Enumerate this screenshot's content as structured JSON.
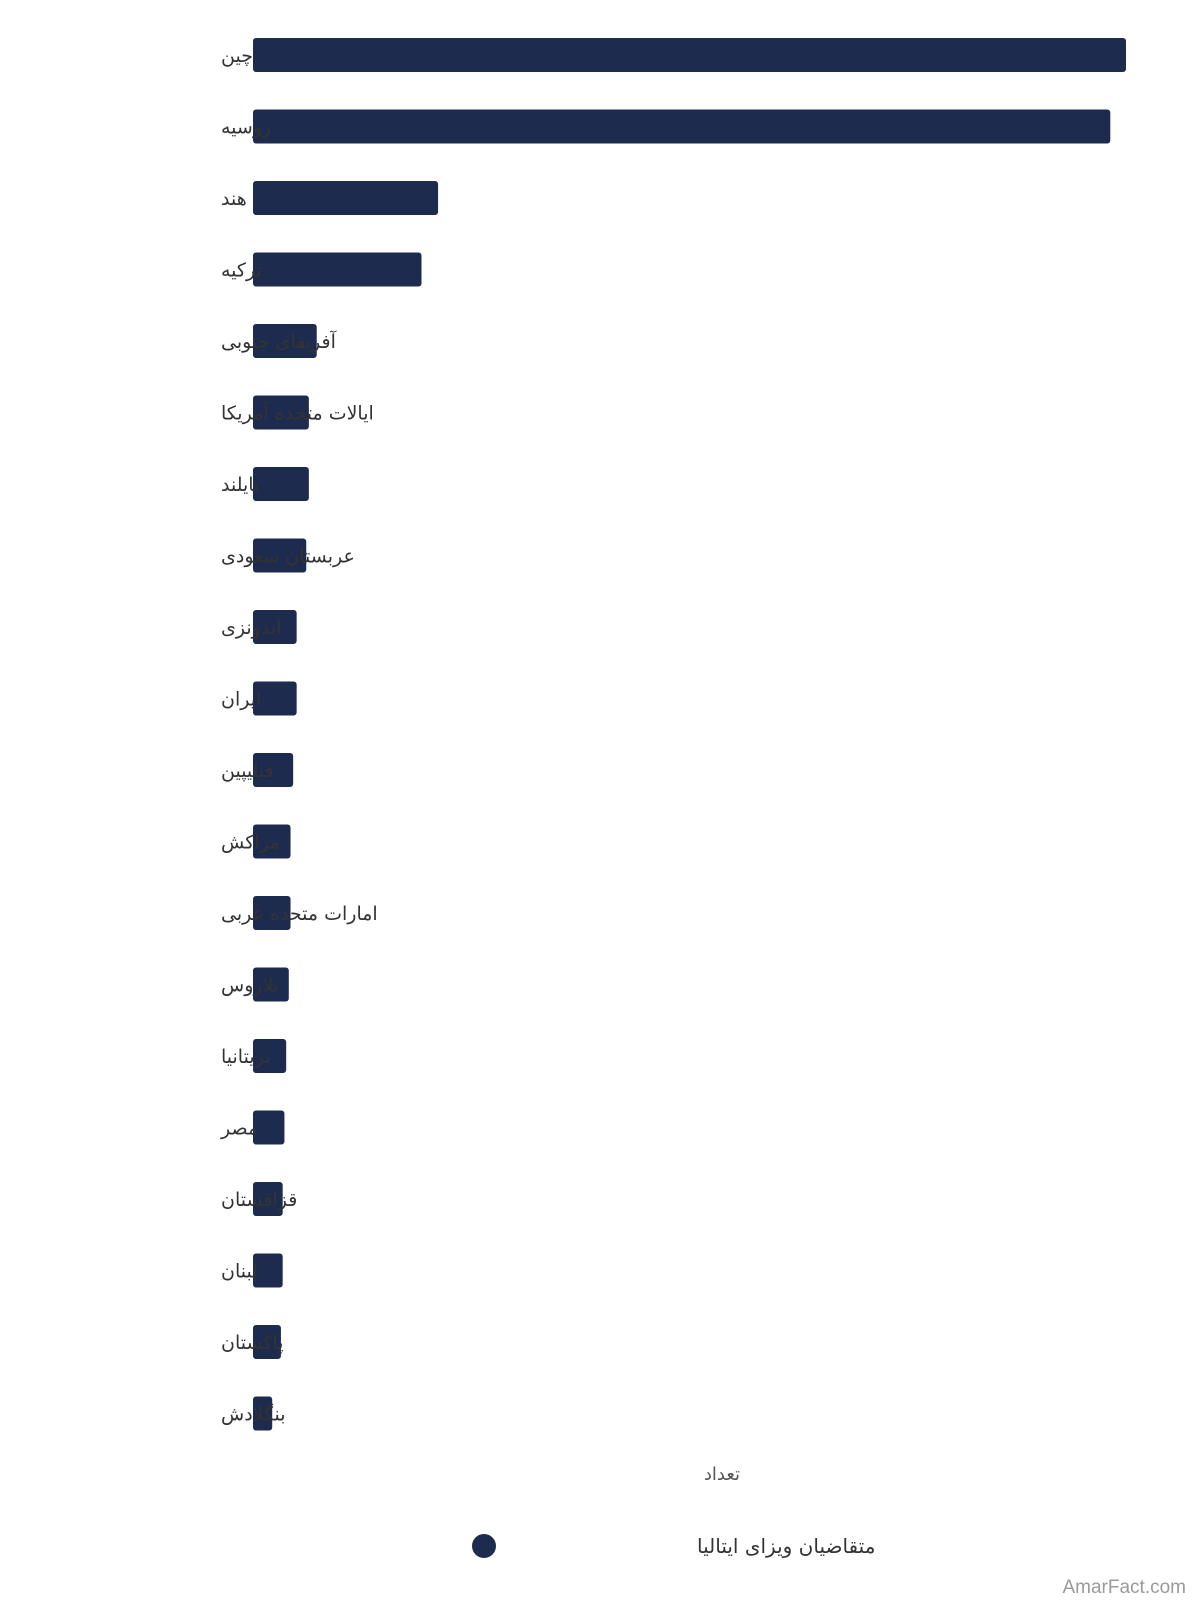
{
  "colors": {
    "bar": "#1d2b4f",
    "label": "#333333",
    "background": "#ffffff"
  },
  "chart_data": {
    "type": "bar",
    "orientation": "horizontal",
    "categories": [
      "چین",
      "روسیه",
      "هند",
      "ترکیه",
      "آفریقای جنوبی",
      "ایالات متحده آمریکا",
      "تایلند",
      "عربستان سعودی",
      "اندونزی",
      "ایران",
      "فیلیپین",
      "مراکش",
      "امارات متحده عربی",
      "بلاروس",
      "بریتانیا",
      "مصر",
      "قزاقستان",
      "لبنان",
      "پاکستان",
      "بنگلادش"
    ],
    "series": [
      {
        "name": "متقاضیان ویزای ایتالیا",
        "values": [
          100,
          98.2,
          21.2,
          19.3,
          7.3,
          6.4,
          6.4,
          6.1,
          5.0,
          5.0,
          4.6,
          4.3,
          4.3,
          4.1,
          3.8,
          3.6,
          3.4,
          3.4,
          3.2,
          2.2
        ]
      }
    ],
    "xlabel": "تعداد",
    "ylabel": "",
    "xlim": [
      0,
      100
    ],
    "grid": false,
    "legend_position": "bottom"
  },
  "watermark": "AmarFact.com"
}
